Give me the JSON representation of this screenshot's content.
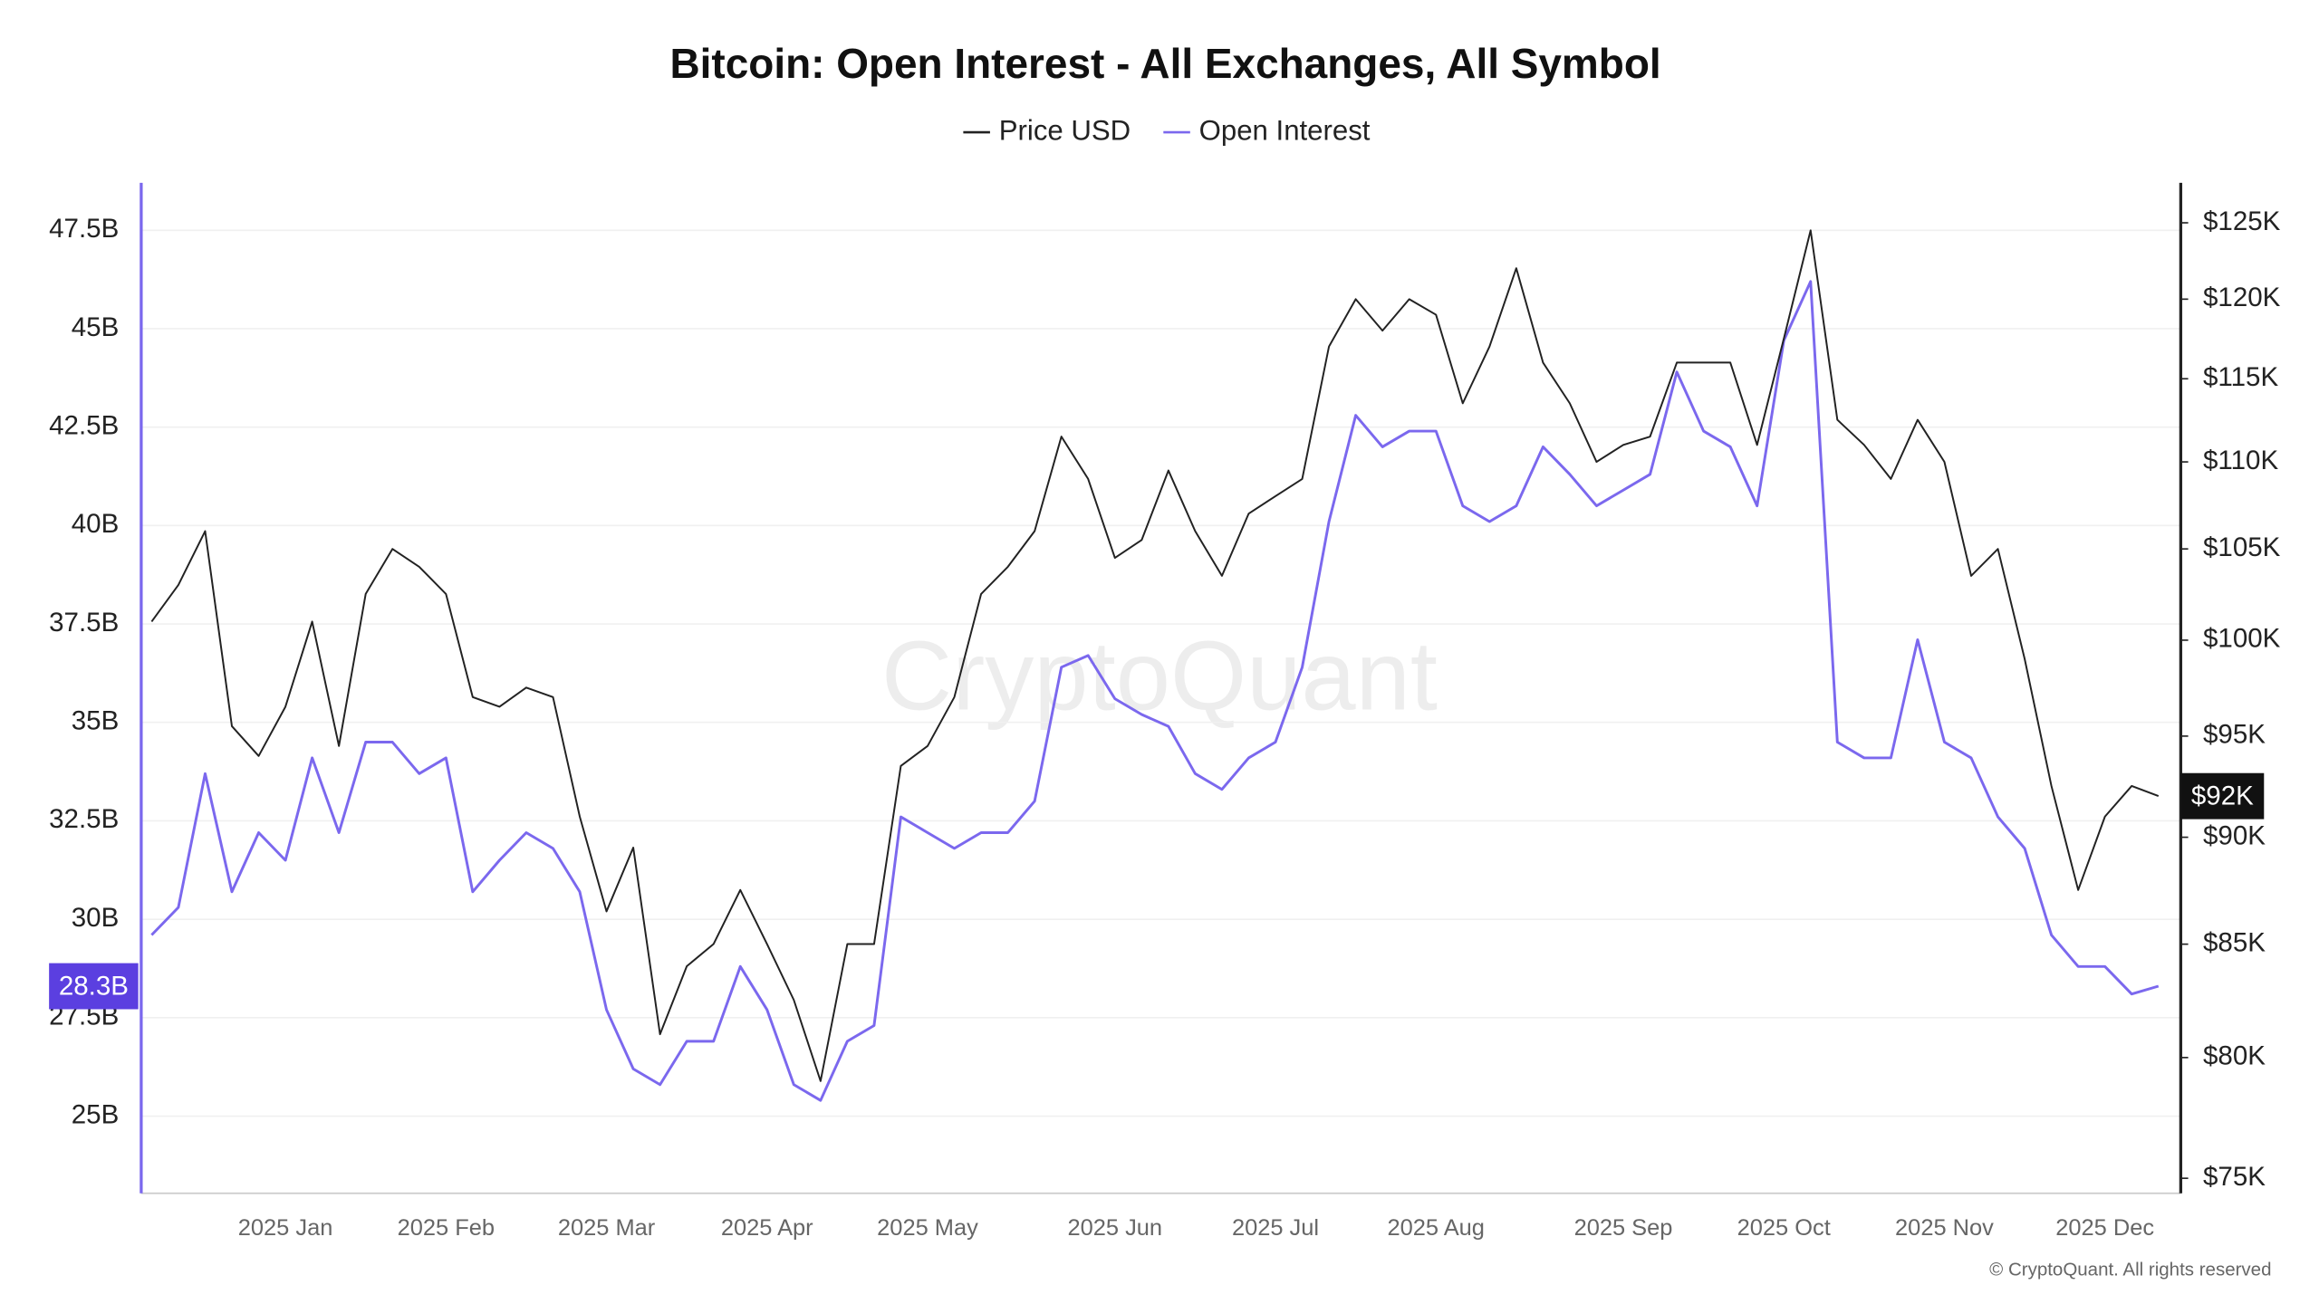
{
  "chart_data": {
    "type": "line",
    "title": "Bitcoin: Open Interest - All Exchanges, All Symbol",
    "watermark": "CryptoQuant",
    "footer": "© CryptoQuant. All rights reserved",
    "legend": "top",
    "grid": true,
    "y_scale": "linear",
    "y2_scale": "log",
    "categories": [
      null,
      null,
      null,
      null,
      null,
      "2025 Jan",
      null,
      null,
      null,
      null,
      null,
      "2025 Feb",
      null,
      null,
      null,
      null,
      null,
      "2025 Mar",
      null,
      null,
      null,
      null,
      null,
      "2025 Apr",
      null,
      null,
      null,
      null,
      null,
      "2025 May",
      null,
      null,
      null,
      null,
      null,
      null,
      "2025 Jun",
      null,
      null,
      null,
      null,
      null,
      "2025 Jul",
      null,
      null,
      null,
      null,
      null,
      "2025 Aug",
      null,
      null,
      null,
      null,
      null,
      null,
      "2025 Sep",
      null,
      null,
      null,
      null,
      null,
      "2025 Oct",
      null,
      null,
      null,
      null,
      null,
      "2025 Nov",
      null,
      null,
      null,
      null,
      null,
      "2025 Dec",
      null,
      null
    ],
    "ylim": [
      23040000000,
      48630000000
    ],
    "yticks": [
      {
        "value": 25000000000,
        "label": "25B"
      },
      {
        "value": 27500000000,
        "label": "27.5B"
      },
      {
        "value": 30000000000,
        "label": "30B"
      },
      {
        "value": 32500000000,
        "label": "32.5B"
      },
      {
        "value": 35000000000,
        "label": "35B"
      },
      {
        "value": 37500000000,
        "label": "37.5B"
      },
      {
        "value": 40000000000,
        "label": "40B"
      },
      {
        "value": 42500000000,
        "label": "42.5B"
      },
      {
        "value": 45000000000,
        "label": "45B"
      },
      {
        "value": 47500000000,
        "label": "47.5B"
      }
    ],
    "y2lim": [
      74400,
      127500
    ],
    "y2ticks": [
      {
        "value": 75000,
        "label": "$75K"
      },
      {
        "value": 80000,
        "label": "$80K"
      },
      {
        "value": 85000,
        "label": "$85K"
      },
      {
        "value": 90000,
        "label": "$90K"
      },
      {
        "value": 95000,
        "label": "$95K"
      },
      {
        "value": 100000,
        "label": "$100K"
      },
      {
        "value": 105000,
        "label": "$105K"
      },
      {
        "value": 110000,
        "label": "$110K"
      },
      {
        "value": 115000,
        "label": "$115K"
      },
      {
        "value": 120000,
        "label": "$120K"
      },
      {
        "value": 125000,
        "label": "$125K"
      }
    ],
    "series": [
      {
        "name": "Price USD",
        "color": "#222222",
        "axis": "y2",
        "last_label": "$92K",
        "values": [
          101000,
          103000,
          106000,
          95500,
          94000,
          96500,
          101000,
          94500,
          102500,
          105000,
          104000,
          102500,
          97000,
          96500,
          97500,
          97000,
          91000,
          86500,
          89500,
          81000,
          84000,
          85000,
          87500,
          85000,
          82500,
          79000,
          85000,
          85000,
          93500,
          94500,
          97000,
          102500,
          104000,
          106000,
          111500,
          109000,
          104500,
          105500,
          109500,
          106000,
          103500,
          107000,
          108000,
          109000,
          117000,
          120000,
          118000,
          120000,
          119000,
          113500,
          117000,
          122000,
          116000,
          113500,
          110000,
          111000,
          111500,
          116000,
          116000,
          116000,
          111000,
          117500,
          124500,
          112500,
          111000,
          109000,
          112500,
          110000,
          103500,
          105000,
          99000,
          92500,
          87500,
          91000,
          92500,
          92000
        ]
      },
      {
        "name": "Open Interest",
        "color": "#7b68ee",
        "axis": "y",
        "last_label": "28.3B",
        "values": [
          29600000000,
          30300000000,
          33700000000,
          30700000000,
          32200000000,
          31500000000,
          34100000000,
          32200000000,
          34500000000,
          34500000000,
          33700000000,
          34100000000,
          30700000000,
          31500000000,
          32200000000,
          31800000000,
          30700000000,
          27700000000,
          26200000000,
          25800000000,
          26900000000,
          26900000000,
          28800000000,
          27700000000,
          25800000000,
          25400000000,
          26900000000,
          27300000000,
          32600000000,
          32200000000,
          31800000000,
          32200000000,
          32200000000,
          33000000000,
          36400000000,
          36700000000,
          35600000000,
          35200000000,
          34900000000,
          33700000000,
          33300000000,
          34100000000,
          34500000000,
          36400000000,
          40100000000,
          42800000000,
          42000000000,
          42400000000,
          42400000000,
          40500000000,
          40100000000,
          40500000000,
          42000000000,
          41300000000,
          40500000000,
          40900000000,
          41300000000,
          43900000000,
          42400000000,
          42000000000,
          40500000000,
          44700000000,
          46200000000,
          34500000000,
          34100000000,
          34100000000,
          37100000000,
          34500000000,
          34100000000,
          32600000000,
          31800000000,
          29600000000,
          28800000000,
          28800000000,
          28100000000,
          28300000000
        ]
      }
    ]
  }
}
